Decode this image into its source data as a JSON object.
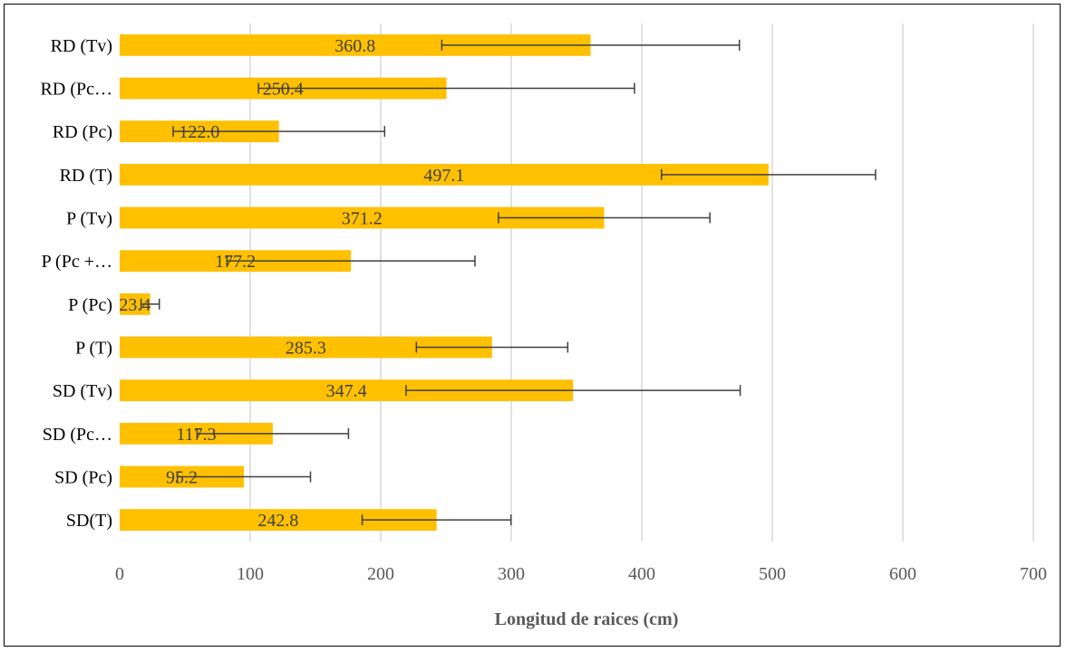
{
  "chart_data": {
    "type": "bar",
    "orientation": "horizontal",
    "title": "",
    "xlabel": "Longitud de raices (cm)",
    "ylabel": "",
    "xlim": [
      0,
      700
    ],
    "xticks": [
      0,
      100,
      200,
      300,
      400,
      500,
      600,
      700
    ],
    "grid": true,
    "legend": "none",
    "bar_color": "#FFC000",
    "error_bar_color": "#404040",
    "categories": [
      "RD (Tv)",
      "RD (Pc…",
      "RD (Pc)",
      "RD (T)",
      "P (Tv)",
      "P (Pc +…",
      "P (Pc)",
      "P (T)",
      "SD (Tv)",
      "SD (Pc…",
      "SD (Pc)",
      "SD(T)"
    ],
    "values": [
      360.8,
      250.4,
      122.0,
      497.1,
      371.2,
      177.2,
      23.4,
      285.3,
      347.4,
      117.3,
      95.2,
      242.8
    ],
    "value_labels": [
      "360.8",
      "250.4",
      "122.0",
      "497.1",
      "371.2",
      "177.2",
      "23.4",
      "285.3",
      "347.4",
      "117.3",
      "95.2",
      "242.8"
    ],
    "error": [
      114,
      144,
      81,
      82,
      81,
      95,
      7,
      58,
      128,
      58,
      51,
      57
    ]
  }
}
